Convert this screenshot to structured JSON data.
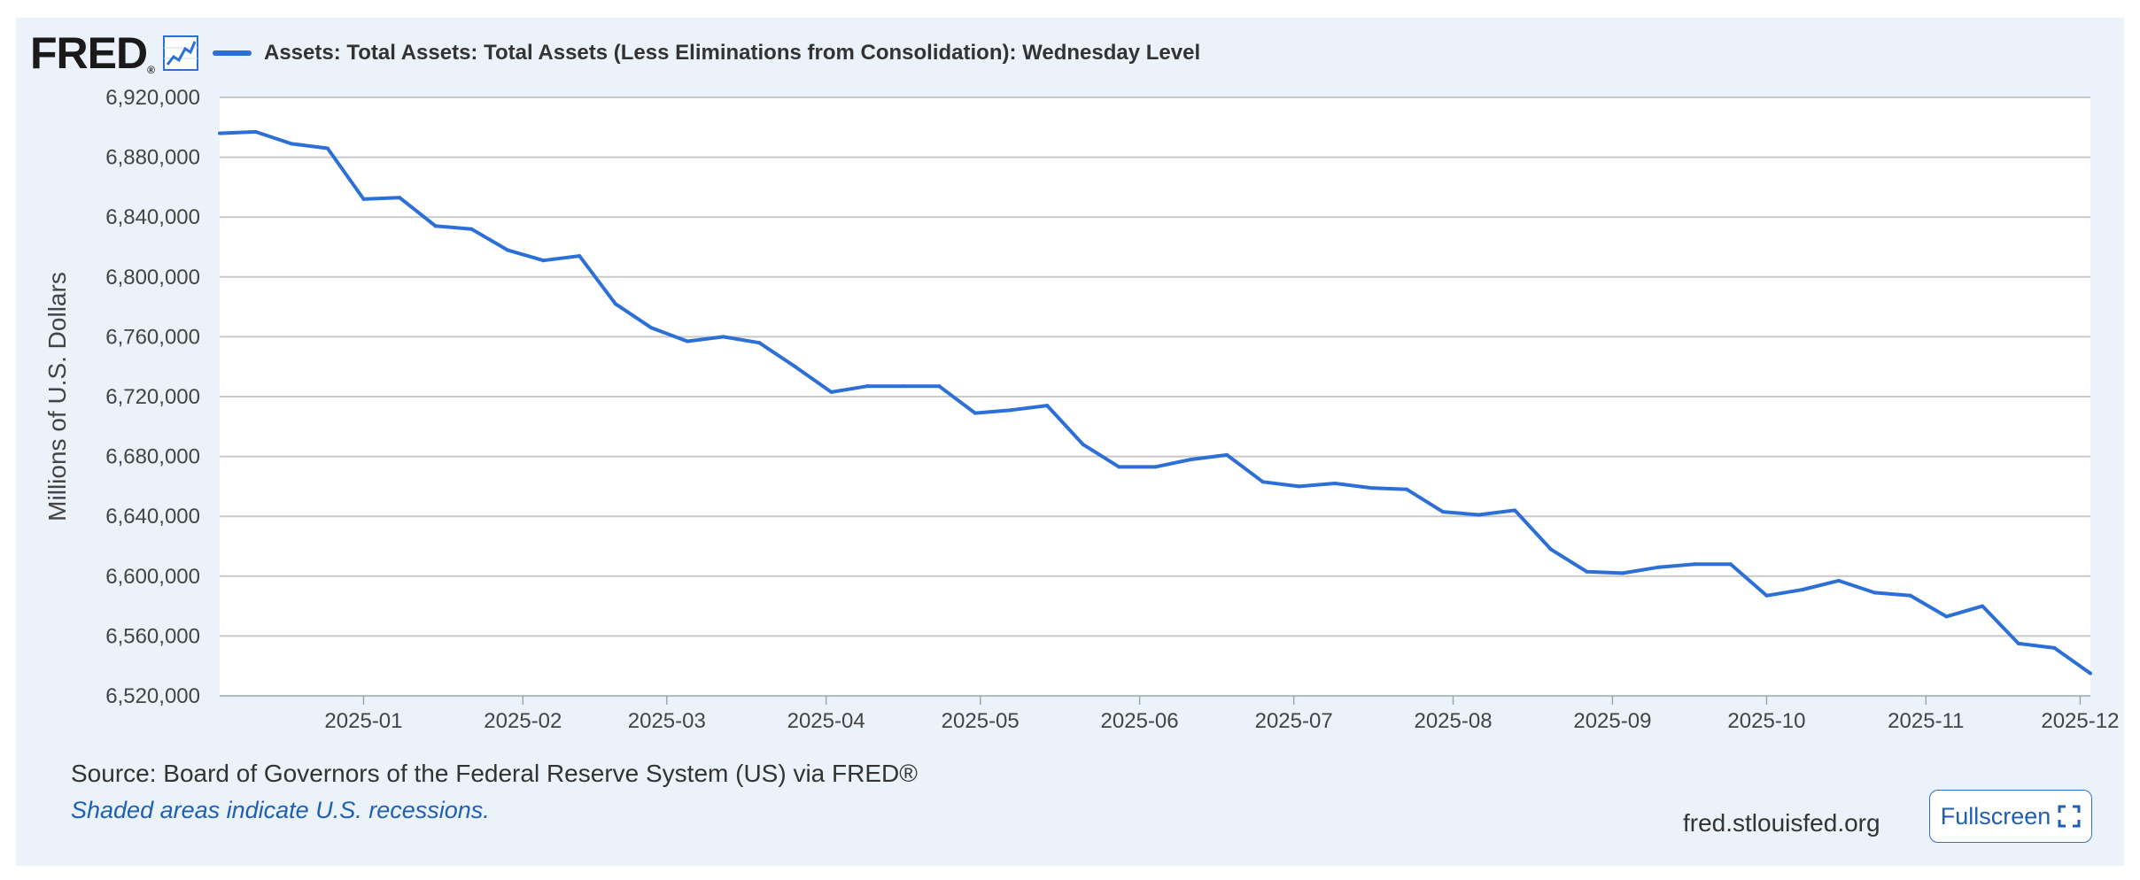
{
  "header": {
    "logo_text": "FRED",
    "logo_mark": "®",
    "logo_icon": "chart-line-icon",
    "series_title": "Assets: Total Assets: Total Assets (Less Eliminations from Consolidation): Wednesday Level"
  },
  "footer": {
    "source": "Source: Board of Governors of the Federal Reserve System (US) via FRED®",
    "recession_note": "Shaded areas indicate U.S. recessions.",
    "site": "fred.stlouisfed.org",
    "fullscreen_label": "Fullscreen",
    "fullscreen_icon": "expand-icon"
  },
  "colors": {
    "series": "#2c6fd6",
    "background": "#ebf2fa",
    "plot": "#ffffff",
    "grid": "#c9c9c9"
  },
  "chart_data": {
    "type": "line",
    "title": "Assets: Total Assets: Total Assets (Less Eliminations from Consolidation): Wednesday Level",
    "xlabel": "",
    "ylabel": "Millions of U.S. Dollars",
    "ylim": [
      6520000,
      6920000
    ],
    "yticks": [
      6520000,
      6560000,
      6600000,
      6640000,
      6680000,
      6720000,
      6760000,
      6800000,
      6840000,
      6880000,
      6920000
    ],
    "ytick_labels": [
      "6,520,000",
      "6,560,000",
      "6,600,000",
      "6,640,000",
      "6,680,000",
      "6,720,000",
      "6,760,000",
      "6,800,000",
      "6,840,000",
      "6,880,000",
      "6,920,000"
    ],
    "xlim": [
      "2024-12-04",
      "2025-12-03"
    ],
    "xticks": [
      "2025-01-01",
      "2025-02-01",
      "2025-03-01",
      "2025-04-01",
      "2025-05-01",
      "2025-06-01",
      "2025-07-01",
      "2025-08-01",
      "2025-09-01",
      "2025-10-01",
      "2025-11-01",
      "2025-12-01"
    ],
    "xtick_labels": [
      "2025-01",
      "2025-02",
      "2025-03",
      "2025-04",
      "2025-05",
      "2025-06",
      "2025-07",
      "2025-08",
      "2025-09",
      "2025-10",
      "2025-11",
      "2025-12"
    ],
    "grid": true,
    "legend": "top-left",
    "series": [
      {
        "name": "Assets: Total Assets: Total Assets (Less Eliminations from Consolidation): Wednesday Level",
        "x": [
          "2024-12-04",
          "2024-12-11",
          "2024-12-18",
          "2024-12-25",
          "2025-01-01",
          "2025-01-08",
          "2025-01-15",
          "2025-01-22",
          "2025-01-29",
          "2025-02-05",
          "2025-02-12",
          "2025-02-19",
          "2025-02-26",
          "2025-03-05",
          "2025-03-12",
          "2025-03-19",
          "2025-03-26",
          "2025-04-02",
          "2025-04-09",
          "2025-04-16",
          "2025-04-23",
          "2025-04-30",
          "2025-05-07",
          "2025-05-14",
          "2025-05-21",
          "2025-05-28",
          "2025-06-04",
          "2025-06-11",
          "2025-06-18",
          "2025-06-25",
          "2025-07-02",
          "2025-07-09",
          "2025-07-16",
          "2025-07-23",
          "2025-07-30",
          "2025-08-06",
          "2025-08-13",
          "2025-08-20",
          "2025-08-27",
          "2025-09-03",
          "2025-09-10",
          "2025-09-17",
          "2025-09-24",
          "2025-10-01",
          "2025-10-08",
          "2025-10-15",
          "2025-10-22",
          "2025-10-29",
          "2025-11-05",
          "2025-11-12",
          "2025-11-19",
          "2025-11-26",
          "2025-12-03"
        ],
        "values": [
          6896000,
          6897000,
          6889000,
          6886000,
          6852000,
          6853000,
          6834000,
          6832000,
          6818000,
          6811000,
          6814000,
          6782000,
          6766000,
          6757000,
          6760000,
          6756000,
          6740000,
          6723000,
          6727000,
          6727000,
          6727000,
          6709000,
          6711000,
          6714000,
          6688000,
          6673000,
          6673000,
          6678000,
          6681000,
          6663000,
          6660000,
          6662000,
          6659000,
          6658000,
          6643000,
          6641000,
          6644000,
          6618000,
          6603000,
          6602000,
          6606000,
          6608000,
          6608000,
          6587000,
          6591000,
          6597000,
          6589000,
          6587000,
          6573000,
          6580000,
          6555000,
          6552000,
          6535000
        ]
      }
    ]
  }
}
